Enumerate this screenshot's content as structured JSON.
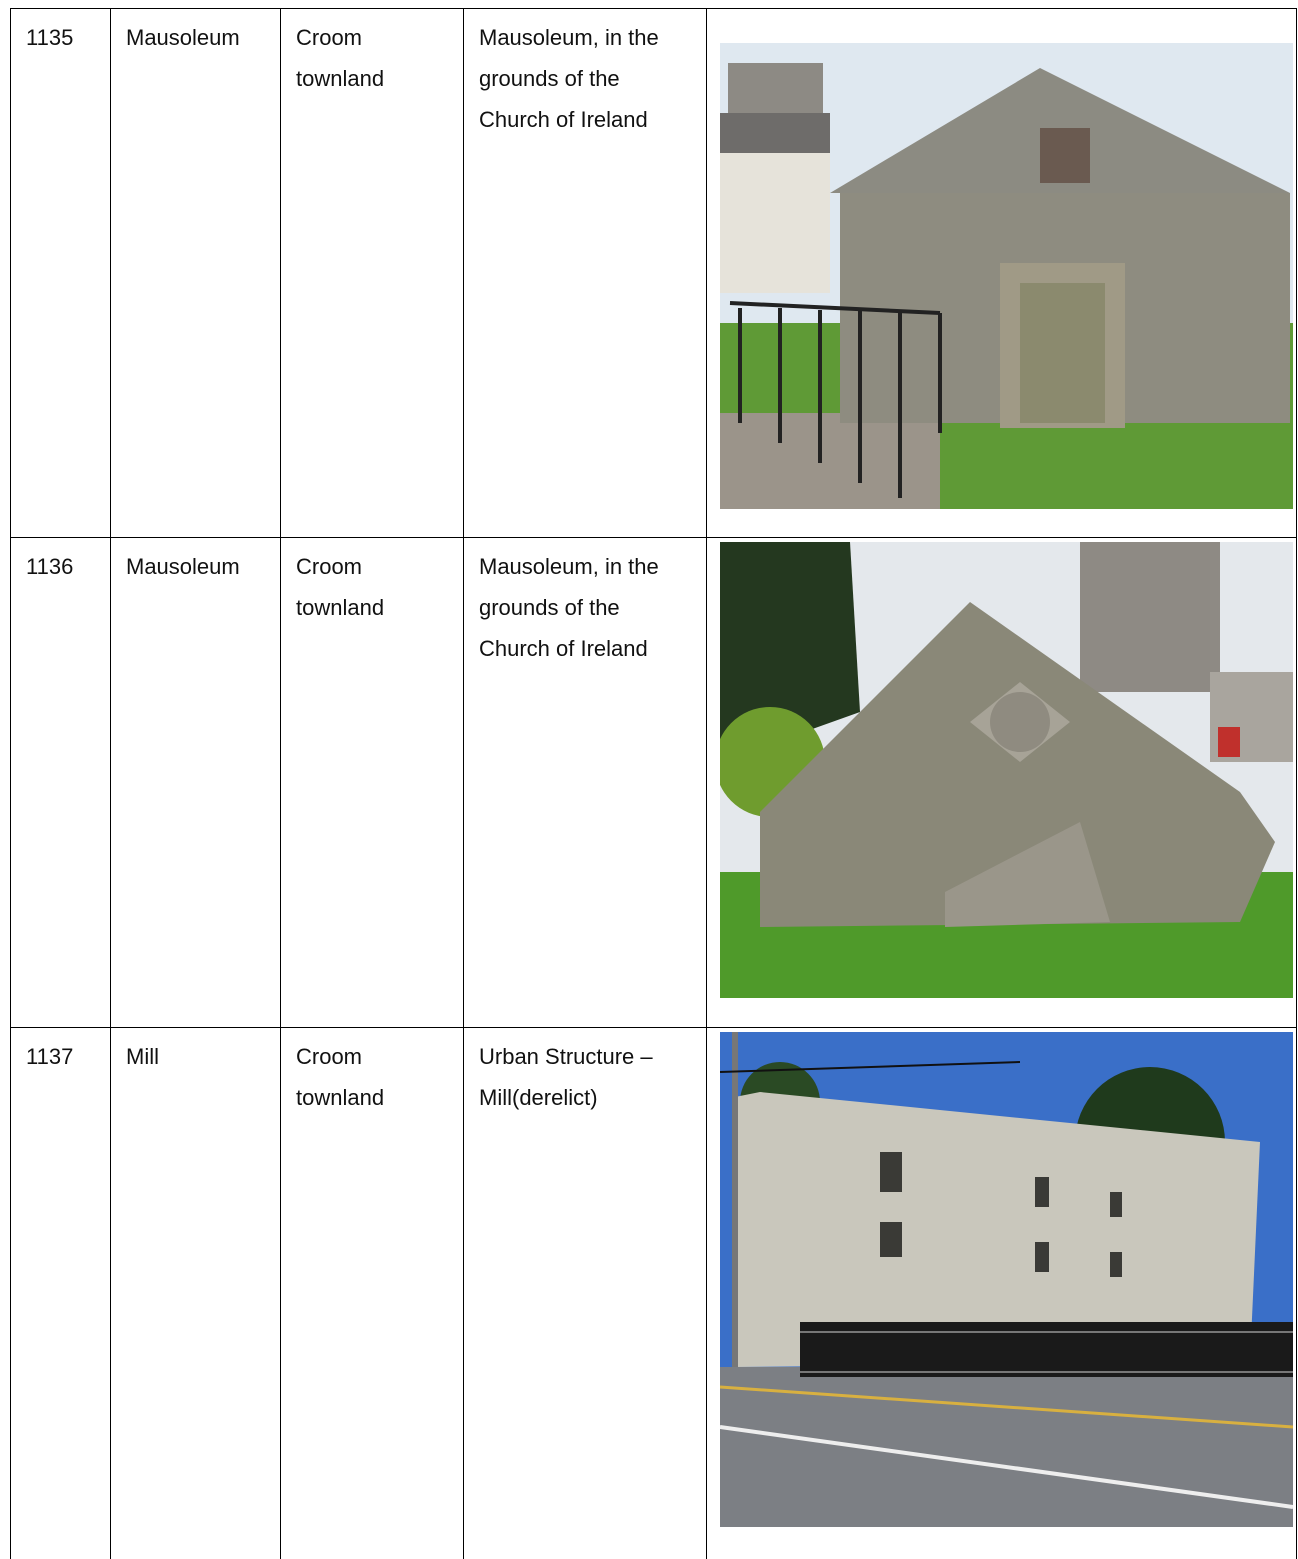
{
  "table": {
    "rows": [
      [
        "1135",
        "Mausoleum",
        "Croom townland",
        "Mausoleum, in the grounds of the Church of Ireland"
      ],
      [
        "1136",
        "Mausoleum",
        "Croom townland",
        "Mausoleum, in the grounds of the Church of Ireland"
      ],
      [
        "1137",
        "Mill",
        "Croom townland",
        "Urban Structure – Mill(derelict)"
      ]
    ]
  }
}
